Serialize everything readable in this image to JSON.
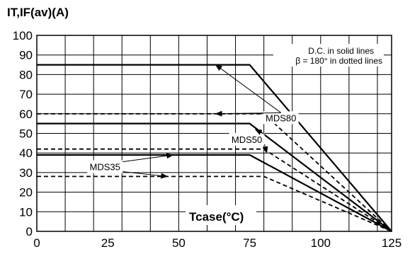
{
  "chart_data": {
    "type": "line",
    "ylabel": "IT,IF(av)(A)",
    "xlabel": "Tcase(°C)",
    "xlim": [
      0,
      125
    ],
    "ylim": [
      0,
      100
    ],
    "x_ticks": [
      "0",
      "25",
      "50",
      "75",
      "100",
      "125"
    ],
    "y_ticks": [
      "0",
      "10",
      "20",
      "30",
      "40",
      "50",
      "60",
      "70",
      "80",
      "90",
      "100"
    ],
    "grid": true,
    "legend": {
      "position": "top-right",
      "line1": "D.C. in solid lines",
      "line2": "β = 180° in dotted lines"
    },
    "series": [
      {
        "name": "MDS80",
        "style": "solid",
        "x": [
          0,
          75,
          125
        ],
        "y": [
          85,
          85,
          0
        ]
      },
      {
        "name": "MDS80",
        "style": "dotted",
        "x": [
          0,
          80,
          125
        ],
        "y": [
          60,
          60,
          0
        ]
      },
      {
        "name": "MDS50",
        "style": "solid",
        "x": [
          0,
          75,
          125
        ],
        "y": [
          55,
          55,
          0
        ]
      },
      {
        "name": "MDS50",
        "style": "dotted",
        "x": [
          0,
          80,
          125
        ],
        "y": [
          42,
          42,
          0
        ]
      },
      {
        "name": "MDS35",
        "style": "solid",
        "x": [
          0,
          75,
          125
        ],
        "y": [
          39,
          39,
          0
        ]
      },
      {
        "name": "MDS35",
        "style": "dotted",
        "x": [
          0,
          80,
          125
        ],
        "y": [
          28,
          28,
          0
        ]
      }
    ],
    "annotations": [
      {
        "text": "MDS80",
        "arrows_to": [
          [
            63,
            85
          ],
          [
            63,
            60
          ]
        ]
      },
      {
        "text": "MDS50",
        "arrows_to": [
          [
            77,
            52
          ],
          [
            81,
            40
          ]
        ]
      },
      {
        "text": "MDS35",
        "arrows_to": [
          [
            48,
            39
          ],
          [
            46,
            28
          ]
        ]
      }
    ]
  }
}
